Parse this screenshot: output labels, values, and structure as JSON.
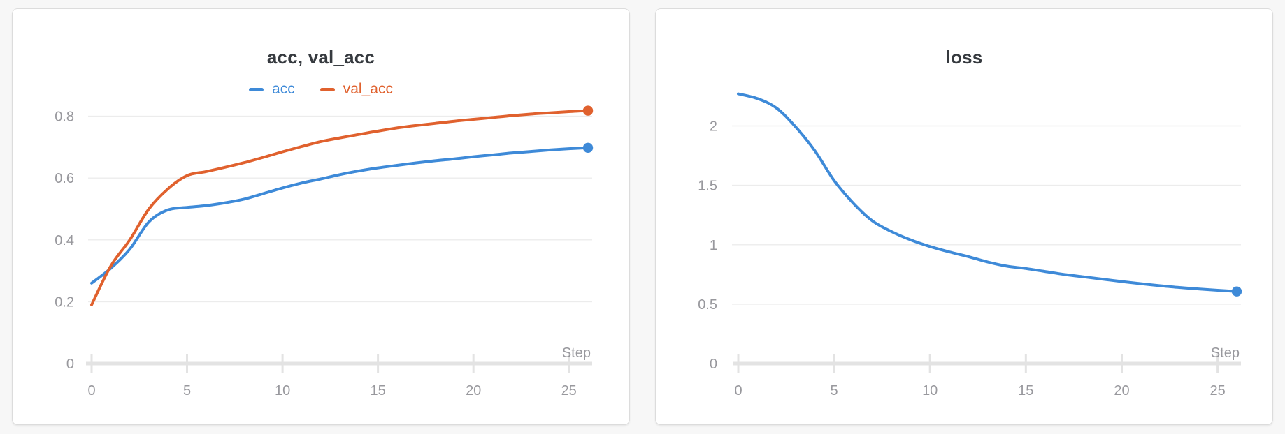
{
  "page": {
    "background": "#f7f7f7",
    "card_background": "#ffffff",
    "card_border_color": "#dcdcdc"
  },
  "style": {
    "title_color": "#363a3f",
    "axis_label_color": "#98989d",
    "gridline_color": "#ececec",
    "axis_line_color": "#e3e3e3",
    "accent_blue": "#3e8ad8",
    "accent_orange": "#e0612e"
  },
  "chart_data": [
    {
      "type": "line",
      "title": "acc, val_acc",
      "xlabel": "Step",
      "x_range": [
        0,
        26
      ],
      "x_ticks": [
        0,
        5,
        10,
        15,
        20,
        25
      ],
      "x_tick_labels": [
        "0",
        "5",
        "10",
        "15",
        "20",
        "25"
      ],
      "y_ticks": [
        0,
        0.2,
        0.4,
        0.6,
        0.8
      ],
      "y_tick_labels": [
        "0",
        "0.2",
        "0.4",
        "0.6",
        "0.8"
      ],
      "ylim": [
        0,
        0.92
      ],
      "grid": true,
      "legend_position": "top-center",
      "x": [
        0,
        1,
        2,
        3,
        4,
        5,
        6,
        7,
        8,
        9,
        10,
        11,
        12,
        13,
        14,
        15,
        16,
        17,
        18,
        19,
        20,
        21,
        22,
        23,
        24,
        25,
        26
      ],
      "series": [
        {
          "name": "acc",
          "color": "#3e8ad8",
          "endpoint_marker": true,
          "values": [
            0.26,
            0.308,
            0.37,
            0.458,
            0.497,
            0.505,
            0.511,
            0.52,
            0.532,
            0.55,
            0.568,
            0.584,
            0.597,
            0.611,
            0.623,
            0.633,
            0.641,
            0.649,
            0.656,
            0.662,
            0.669,
            0.675,
            0.681,
            0.686,
            0.691,
            0.695,
            0.698
          ]
        },
        {
          "name": "val_acc",
          "color": "#e0612e",
          "endpoint_marker": true,
          "values": [
            0.19,
            0.315,
            0.4,
            0.5,
            0.565,
            0.608,
            0.621,
            0.635,
            0.65,
            0.667,
            0.685,
            0.702,
            0.718,
            0.73,
            0.741,
            0.752,
            0.762,
            0.77,
            0.777,
            0.784,
            0.79,
            0.796,
            0.802,
            0.807,
            0.811,
            0.815,
            0.818
          ]
        }
      ]
    },
    {
      "type": "line",
      "title": "loss",
      "xlabel": "Step",
      "x_range": [
        0,
        26
      ],
      "x_ticks": [
        0,
        5,
        10,
        15,
        20,
        25
      ],
      "x_tick_labels": [
        "0",
        "5",
        "10",
        "15",
        "20",
        "25"
      ],
      "y_ticks": [
        0,
        0.5,
        1,
        1.5,
        2
      ],
      "y_tick_labels": [
        "0",
        "0.5",
        "1",
        "1.5",
        "2"
      ],
      "ylim": [
        0,
        2.4
      ],
      "grid": true,
      "legend_position": "none",
      "x": [
        0,
        1,
        2,
        3,
        4,
        5,
        6,
        7,
        8,
        9,
        10,
        11,
        12,
        13,
        14,
        15,
        16,
        17,
        18,
        19,
        20,
        21,
        22,
        23,
        24,
        25,
        26
      ],
      "series": [
        {
          "name": "loss",
          "color": "#3e8ad8",
          "endpoint_marker": true,
          "values": [
            2.27,
            2.23,
            2.15,
            1.99,
            1.79,
            1.54,
            1.35,
            1.2,
            1.11,
            1.04,
            0.985,
            0.94,
            0.9,
            0.855,
            0.82,
            0.8,
            0.775,
            0.75,
            0.73,
            0.71,
            0.69,
            0.672,
            0.655,
            0.64,
            0.628,
            0.617,
            0.607
          ]
        }
      ]
    }
  ]
}
